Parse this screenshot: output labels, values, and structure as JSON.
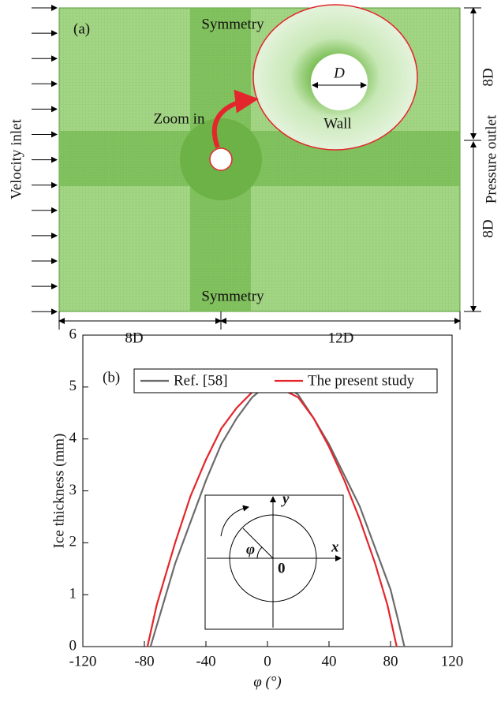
{
  "panel_a": {
    "label": "(a)",
    "symmetry_top": "Symmetry",
    "symmetry_bottom": "Symmetry",
    "zoom": "Zoom in",
    "diameter": "D",
    "wall": "Wall",
    "inlet": "Velocity inlet",
    "outlet": "Pressure outlet",
    "dim_upper": "8D",
    "dim_lower": "8D",
    "dim_left": "8D",
    "dim_right": "12D"
  },
  "chart_data": {
    "type": "line",
    "label": "(b)",
    "x_label": "φ (°)",
    "y_label": "Ice thickness (mm)",
    "xlim": [
      -120,
      120
    ],
    "xticks": [
      -120,
      -80,
      -40,
      0,
      40,
      80,
      120
    ],
    "ylim": [
      0,
      6
    ],
    "yticks": [
      0,
      1,
      2,
      3,
      4,
      5,
      6
    ],
    "series": [
      {
        "name": "Ref. [58]",
        "color": "#6b6b6b",
        "x": [
          -76,
          -70,
          -60,
          -50,
          -40,
          -30,
          -20,
          -10,
          0,
          5,
          10,
          20,
          30,
          40,
          50,
          60,
          70,
          80,
          85,
          89
        ],
        "values": [
          0,
          0.6,
          1.6,
          2.4,
          3.2,
          3.9,
          4.4,
          4.8,
          5.05,
          5.1,
          5.08,
          4.85,
          4.4,
          3.9,
          3.3,
          2.7,
          1.9,
          1.1,
          0.5,
          0
        ]
      },
      {
        "name": "The present study",
        "color": "#e3262b",
        "x": [
          -78,
          -72,
          -60,
          -50,
          -40,
          -30,
          -20,
          -10,
          0,
          10,
          20,
          30,
          40,
          50,
          60,
          70,
          78,
          84
        ],
        "values": [
          0,
          0.8,
          2.0,
          2.9,
          3.6,
          4.2,
          4.6,
          4.9,
          5.02,
          4.95,
          4.8,
          4.4,
          3.85,
          3.2,
          2.45,
          1.6,
          0.8,
          0
        ]
      }
    ],
    "inset_labels": {
      "y_axis": "y",
      "x_axis": "x",
      "angle": "φ",
      "origin": "0"
    }
  }
}
